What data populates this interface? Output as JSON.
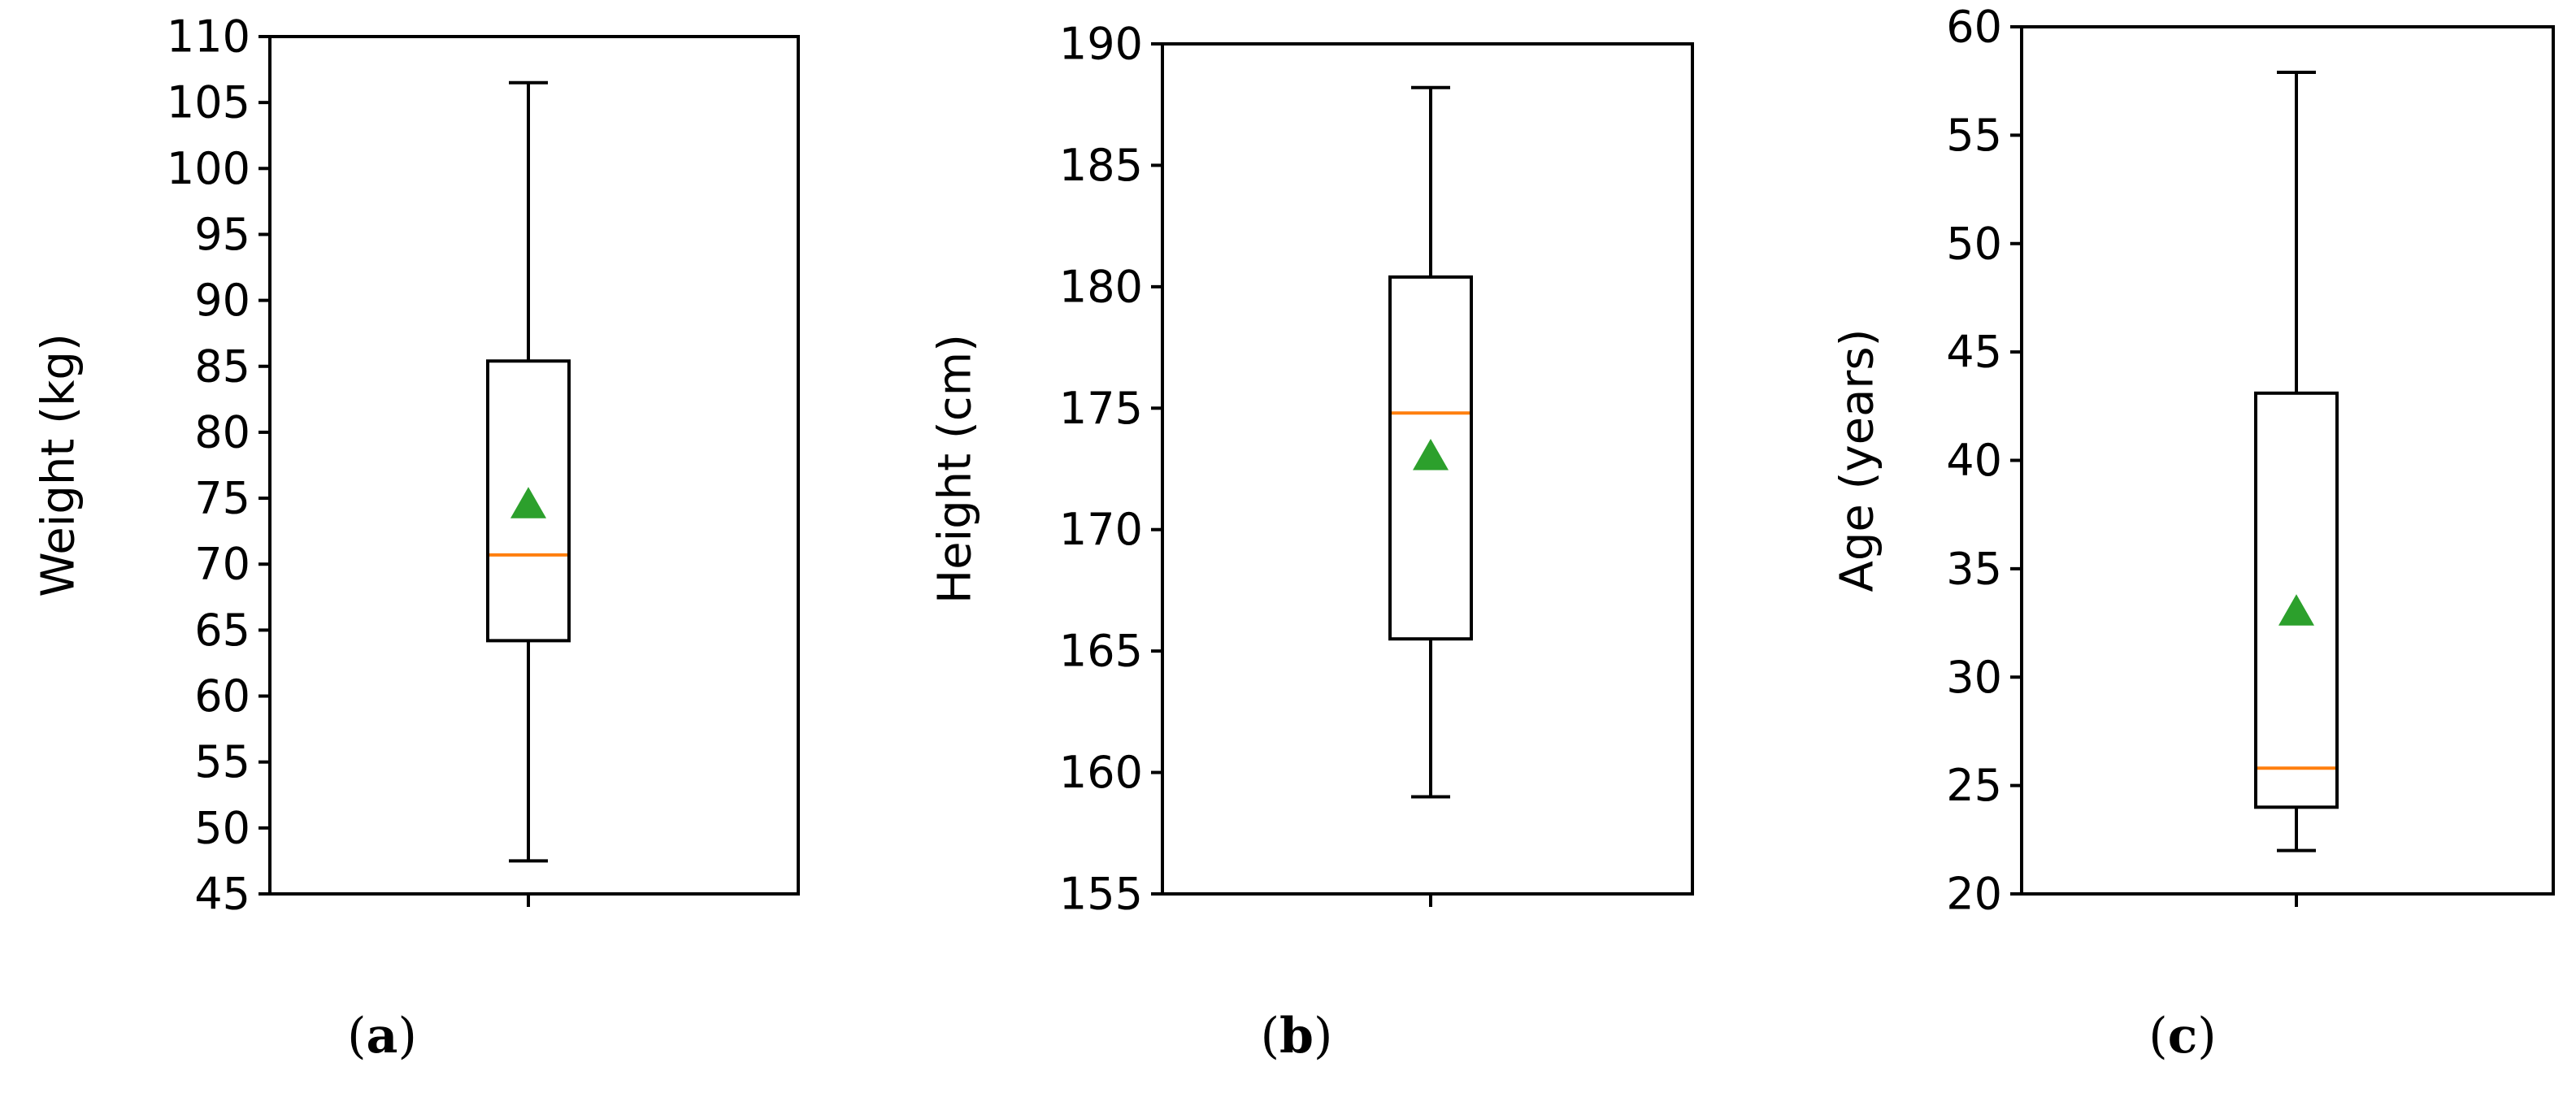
{
  "chart_data": [
    {
      "type": "box",
      "panel_label": {
        "open": "(",
        "letter": "a",
        "close": ")"
      },
      "ylabel": "Weight (kg)",
      "ylim": [
        45,
        110
      ],
      "yticks": [
        45,
        50,
        55,
        60,
        65,
        70,
        75,
        80,
        85,
        90,
        95,
        100,
        105,
        110
      ],
      "box": {
        "whisker_low": 47.5,
        "q1": 64.2,
        "median": 70.7,
        "q3": 85.4,
        "whisker_high": 106.5,
        "mean": 74.5
      },
      "colors": {
        "box": "#000000",
        "median": "#ff7f0e",
        "mean": "#2ca02c"
      }
    },
    {
      "type": "box",
      "panel_label": {
        "open": "(",
        "letter": "b",
        "close": ")"
      },
      "ylabel": "Height (cm)",
      "ylim": [
        155,
        190
      ],
      "yticks": [
        155,
        160,
        165,
        170,
        175,
        180,
        185,
        190
      ],
      "box": {
        "whisker_low": 159,
        "q1": 165.5,
        "median": 174.8,
        "q3": 180.4,
        "whisker_high": 188.2,
        "mean": 173
      },
      "colors": {
        "box": "#000000",
        "median": "#ff7f0e",
        "mean": "#2ca02c"
      }
    },
    {
      "type": "box",
      "panel_label": {
        "open": "(",
        "letter": "c",
        "close": ")"
      },
      "ylabel": "Age (years)",
      "ylim": [
        20,
        60
      ],
      "yticks": [
        20,
        25,
        30,
        35,
        40,
        45,
        50,
        55,
        60
      ],
      "box": {
        "whisker_low": 22,
        "q1": 24,
        "median": 25.8,
        "q3": 43.1,
        "whisker_high": 57.9,
        "mean": 33
      },
      "colors": {
        "box": "#000000",
        "median": "#ff7f0e",
        "mean": "#2ca02c"
      }
    }
  ]
}
